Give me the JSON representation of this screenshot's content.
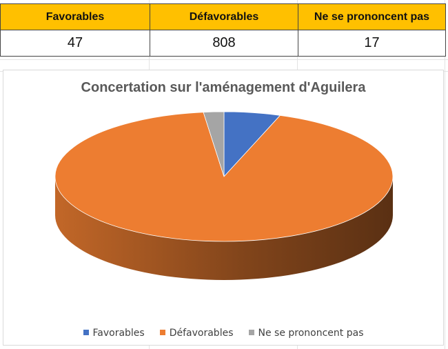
{
  "table": {
    "headers": [
      "Favorables",
      "Défavorables",
      "Ne se prononcent pas"
    ],
    "values": [
      "47",
      "808",
      "17"
    ]
  },
  "chart_data": {
    "type": "pie",
    "title": "Concertation sur l'aménagement d'Aguilera",
    "categories": [
      "Favorables",
      "Défavorables",
      "Ne se prononcent pas"
    ],
    "values": [
      47,
      808,
      17
    ],
    "colors": [
      "#4472c4",
      "#ed7d31",
      "#a5a5a5"
    ],
    "style": "3d",
    "legend": "bottom"
  }
}
